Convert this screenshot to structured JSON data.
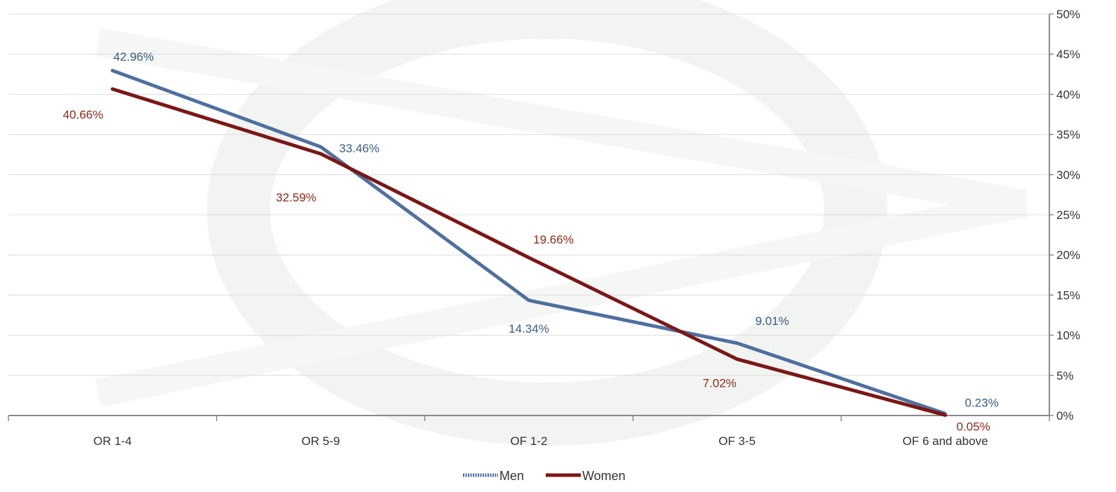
{
  "chart_data": {
    "type": "line",
    "categories": [
      "OR 1-4",
      "OR 5-9",
      "OF 1-2",
      "OF 3-5",
      "OF 6 and above"
    ],
    "series": [
      {
        "name": "Men",
        "values": [
          42.96,
          33.46,
          14.34,
          9.01,
          0.23
        ],
        "labels": [
          "42.96%",
          "33.46%",
          "14.34%",
          "9.01%",
          "0.23%"
        ],
        "color": "#4F6F9F"
      },
      {
        "name": "Women",
        "values": [
          40.66,
          32.59,
          19.66,
          7.02,
          0.05
        ],
        "labels": [
          "40.66%",
          "32.59%",
          "19.66%",
          "7.02%",
          "0.05%"
        ],
        "color": "#7B1716"
      }
    ],
    "y_axis": {
      "position": "right",
      "ylim": [
        0,
        50
      ],
      "ticks": [
        0,
        5,
        10,
        15,
        20,
        25,
        30,
        35,
        40,
        45,
        50
      ],
      "tick_labels": [
        "0%",
        "5%",
        "10%",
        "15%",
        "20%",
        "25%",
        "30%",
        "35%",
        "40%",
        "45%",
        "50%"
      ]
    },
    "grid": true,
    "legend": "bottom-center",
    "label_colors": {
      "Men": "#3D5A80",
      "Women": "#8B2A1A"
    }
  }
}
